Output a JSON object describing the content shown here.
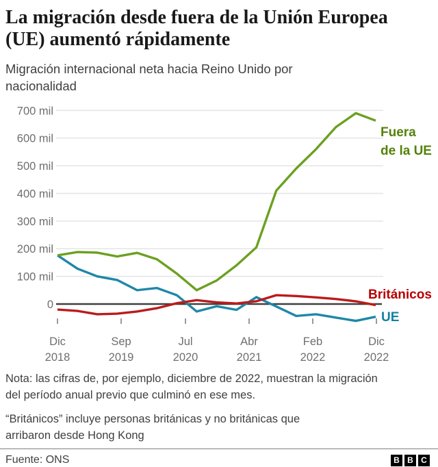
{
  "header": {
    "title": "La migración desde fuera de la Unión Europea (UE) aumentó rápidamente",
    "title_lines": [
      "La migración desde fuera de la Unión Europea",
      "(UE) aumentó rápidamente"
    ],
    "subtitle": "Migración internacional neta hacia Reino Unido por nacionalidad",
    "subtitle_lines": [
      "Migración internacional neta hacia Reino Unido por",
      "nacionalidad"
    ]
  },
  "notes": [
    {
      "lines": [
        "Nota: las cifras de, por ejemplo, diciembre de 2022, muestran la migración",
        "del período anual previo que culminó en ese mes."
      ]
    },
    {
      "lines": [
        "“Británicos” incluye personas británicas y no británicas que",
        "arribaron desde Hong Kong"
      ]
    }
  ],
  "footer": {
    "source": "Fuente: ONS",
    "logo_letters": [
      "B",
      "B",
      "C"
    ]
  },
  "colors": {
    "grid": "#E4E4E4",
    "zero_line": "#3F3F3F",
    "axis_text": "#6E6E6E",
    "tick_mark": "#8F8F8F",
    "title_text": "#191919",
    "body_text": "#3F3F42"
  },
  "chart_data": {
    "type": "line",
    "title": "La migración desde fuera de la Unión Europea (UE) aumentó rápidamente",
    "subtitle": "Migración internacional neta hacia Reino Unido por nacionalidad",
    "source": "Fuente: ONS",
    "y_unit": "mil",
    "ylim": [
      -75,
      760
    ],
    "grid": "horizontal",
    "zero_line": true,
    "legend_position": "end-of-line labels",
    "x_tick_labels": [
      {
        "line1": "Dic",
        "line2": "2018"
      },
      {
        "line1": "Sep",
        "line2": "2019"
      },
      {
        "line1": "Jul",
        "line2": "2020"
      },
      {
        "line1": "Abr",
        "line2": "2021"
      },
      {
        "line1": "Feb",
        "line2": "2022"
      },
      {
        "line1": "Dic",
        "line2": "2022"
      }
    ],
    "y_ticks": [
      {
        "label": "700 mil",
        "value": 700
      },
      {
        "label": "600 mil",
        "value": 600
      },
      {
        "label": "500 mil",
        "value": 500
      },
      {
        "label": "400 mil",
        "value": 400
      },
      {
        "label": "300 mil",
        "value": 300
      },
      {
        "label": "200 mil",
        "value": 200
      },
      {
        "label": "100 mil",
        "value": 100
      },
      {
        "label": "0",
        "value": 0
      }
    ],
    "x_points_note": "17 puntos trimestrales de período anual, Dic 2018 a Dic 2022",
    "series": [
      {
        "name": "Fuera de la UE",
        "label_lines": [
          "Fuera",
          "de la UE"
        ],
        "color": "#6BA021",
        "label_color": "#54810A",
        "values": [
          176,
          188,
          186,
          172,
          185,
          162,
          110,
          50,
          85,
          140,
          205,
          410,
          490,
          560,
          640,
          690,
          663
        ]
      },
      {
        "name": "Británicos",
        "label_lines": [
          "Británicos"
        ],
        "color": "#BB1B1B",
        "label_color": "#B80000",
        "values": [
          -20,
          -25,
          -37,
          -35,
          -27,
          -15,
          3,
          14,
          6,
          2,
          10,
          32,
          29,
          24,
          18,
          10,
          -4
        ]
      },
      {
        "name": "UE",
        "label_lines": [
          "UE"
        ],
        "color": "#1E87A8",
        "label_color": "#1380A1",
        "values": [
          176,
          128,
          100,
          87,
          50,
          58,
          32,
          -27,
          -8,
          -21,
          25,
          -9,
          -43,
          -37,
          -49,
          -61,
          -46
        ]
      }
    ]
  }
}
